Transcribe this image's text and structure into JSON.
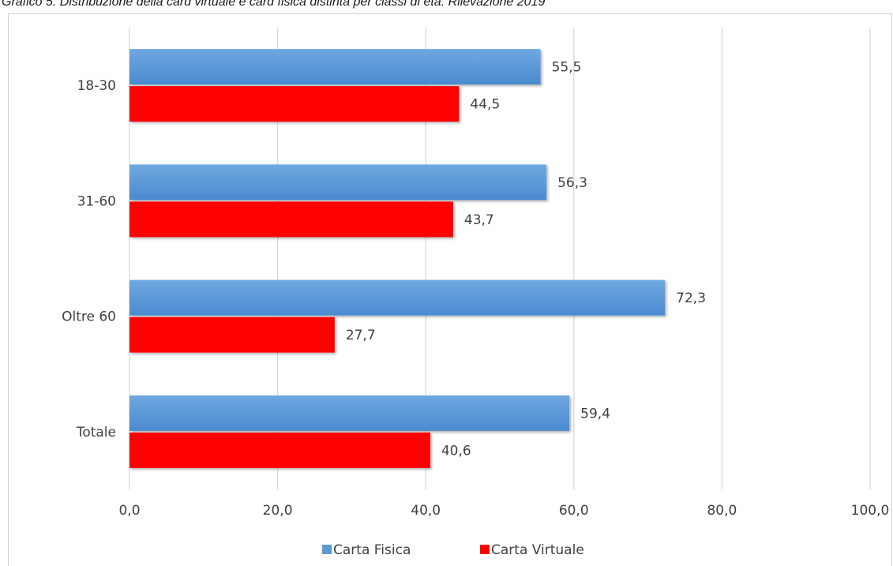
{
  "title": "Grafico 5. Distribuzione della card virtuale e card fisica distinta per classi di età. Rilevazione 2019",
  "chart_data": {
    "type": "bar",
    "orientation": "horizontal",
    "categories": [
      "18-30",
      "31-60",
      "Oltre 60",
      "Totale"
    ],
    "series": [
      {
        "name": "Carta Fisica",
        "color": "#5b9bd5",
        "values": [
          55.5,
          56.3,
          72.3,
          59.4
        ],
        "labels": [
          "55,5",
          "56,3",
          "72,3",
          "59,4"
        ]
      },
      {
        "name": "Carta Virtuale",
        "color": "#ff0000",
        "values": [
          44.5,
          43.7,
          27.7,
          40.6
        ],
        "labels": [
          "44,5",
          "43,7",
          "27,7",
          "40,6"
        ]
      }
    ],
    "xlim": [
      0,
      100
    ],
    "xticks": [
      0,
      20,
      40,
      60,
      80,
      100
    ],
    "xtick_labels": [
      "0,0",
      "20,0",
      "40,0",
      "60,0",
      "80,0",
      "100,0"
    ],
    "grid": true,
    "legend": "bottom"
  }
}
